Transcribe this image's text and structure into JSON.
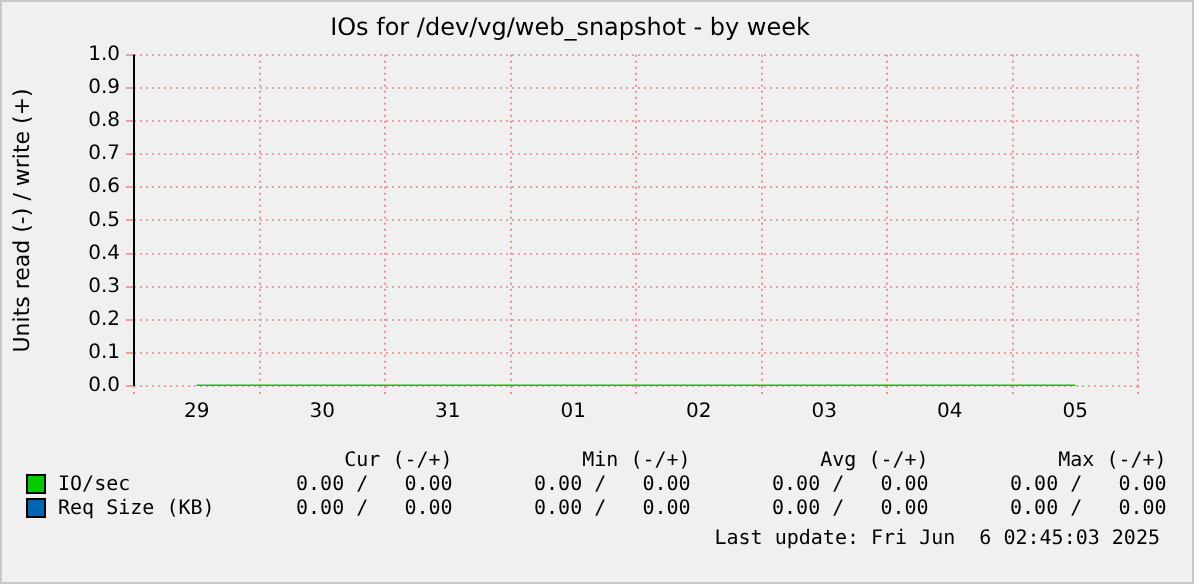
{
  "chart_data": {
    "type": "line",
    "title": "IOs for /dev/vg/web_snapshot - by week",
    "ylabel": "Units read (-) / write (+)",
    "categories": [
      "29",
      "30",
      "31",
      "01",
      "02",
      "03",
      "04",
      "05"
    ],
    "series": [
      {
        "name": "IO/sec",
        "color": "#00cc00",
        "values": [
          0,
          0,
          0,
          0,
          0,
          0,
          0,
          0
        ]
      },
      {
        "name": "Req Size (KB)",
        "color": "#0066b3",
        "values": [
          null,
          null,
          null,
          null,
          null,
          null,
          null,
          null
        ]
      }
    ],
    "ylim": [
      0,
      1
    ],
    "yticks": [
      {
        "value": 0,
        "label": "0.0"
      },
      0.1,
      0.2,
      0.3,
      0.4,
      0.5,
      0.6,
      0.7,
      0.8,
      0.9,
      {
        "value": 1,
        "label": "1.0"
      }
    ],
    "grid": true,
    "legend": "bottom left",
    "marker": "none",
    "line_style": "solid",
    "annotations": [
      "Cur (-/+)",
      "Min (-/+)",
      "Avg (-/+)",
      "Max (-/+)",
      "0.00 /   0.00",
      "0.00 /   0.00",
      "0.00 /   0.00",
      "0.00 /   0.00",
      "0.00 /   0.00",
      "0.00 /   0.00",
      "0.00 /   0.00",
      "0.00 /   0.00",
      "Last update: Fri Jun  6 02:45:03 2025"
    ]
  }
}
